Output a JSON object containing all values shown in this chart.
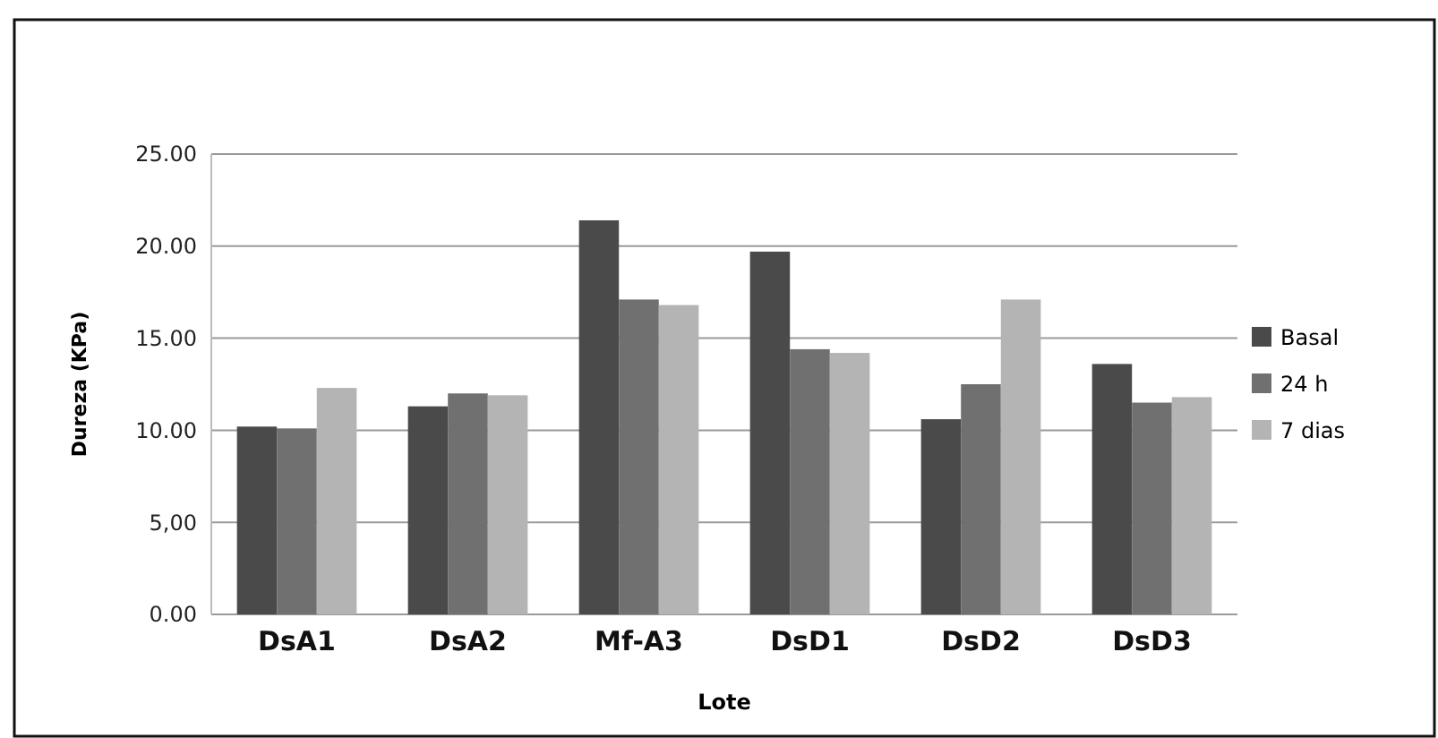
{
  "chart_data": {
    "type": "bar",
    "xlabel": "Lote",
    "ylabel": "Dureza (KPa)",
    "categories": [
      "DsA1",
      "DsA2",
      "Mf-A3",
      "DsD1",
      "DsD2",
      "DsD3"
    ],
    "series": [
      {
        "name": "Basal",
        "color": "#4a4a4a",
        "values": [
          10.2,
          11.3,
          21.4,
          19.7,
          10.6,
          13.6
        ]
      },
      {
        "name": "24 h",
        "color": "#707070",
        "values": [
          10.1,
          12.0,
          17.1,
          14.4,
          12.5,
          11.5
        ]
      },
      {
        "name": "7 dias",
        "color": "#b4b4b4",
        "values": [
          12.3,
          11.9,
          16.8,
          14.2,
          17.1,
          11.8
        ]
      }
    ],
    "ylim": [
      0,
      25
    ],
    "yticks": [
      {
        "value": 0,
        "label": "0.00"
      },
      {
        "value": 5,
        "label": "5,00"
      },
      {
        "value": 10,
        "label": "10.00"
      },
      {
        "value": 15,
        "label": "15.00"
      },
      {
        "value": 20,
        "label": "20.00"
      },
      {
        "value": 25,
        "label": "25.00"
      }
    ],
    "grid": "y",
    "legend": "right"
  }
}
